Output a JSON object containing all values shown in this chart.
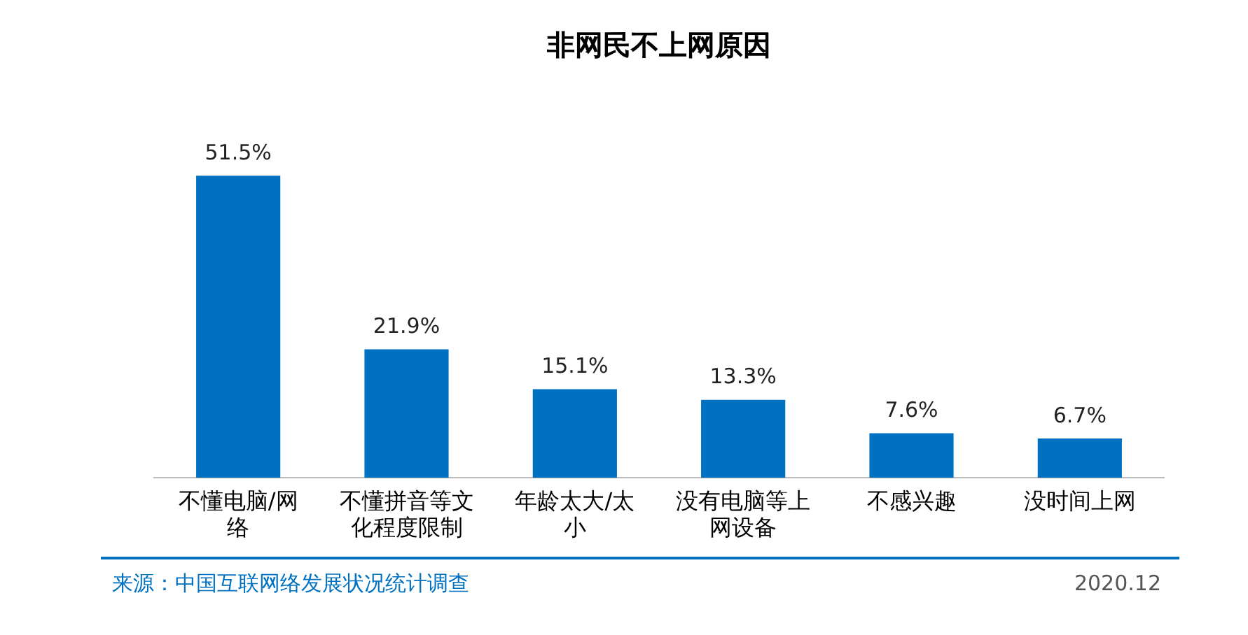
{
  "chart_data": {
    "type": "bar",
    "title": "非网民不上网原因",
    "categories": [
      "不懂电脑/网络",
      "不懂拼音等文化程度限制",
      "年龄太大/太小",
      "没有电脑等上网设备",
      "不感兴趣",
      "没时间上网"
    ],
    "values": [
      51.5,
      21.9,
      15.1,
      13.3,
      7.6,
      6.7
    ],
    "value_labels": [
      "51.5%",
      "21.9%",
      "15.1%",
      "13.3%",
      "7.6%",
      "6.7%"
    ],
    "color": "#0070c0",
    "grid": false,
    "legend": false,
    "annotations": [
      "来源：中国互联网络发展状况统计调查",
      "2020.12"
    ]
  }
}
